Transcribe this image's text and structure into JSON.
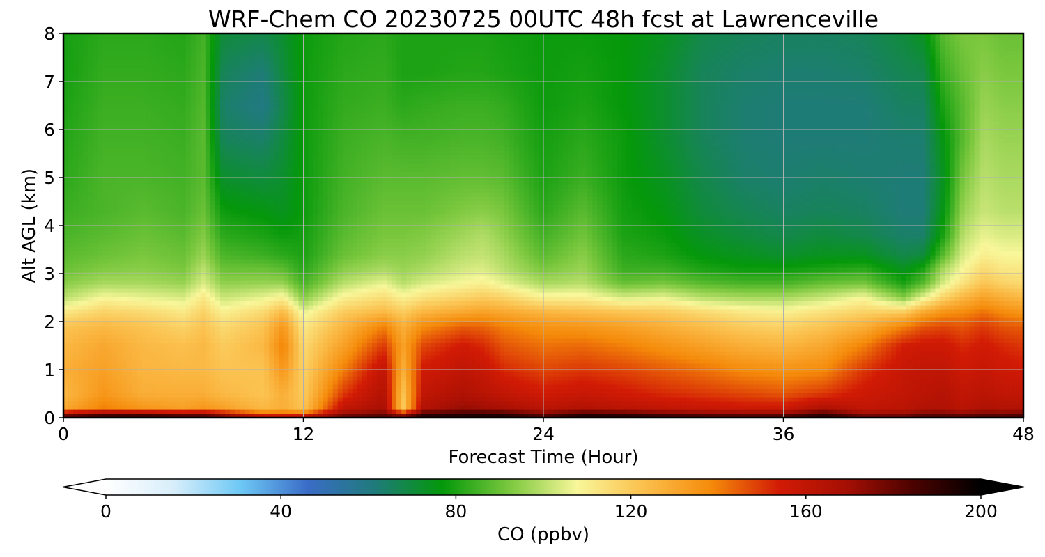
{
  "chart_data": {
    "type": "heatmap",
    "title": "WRF-Chem CO  20230725 00UTC 48h fcst at Lawrenceville",
    "xlabel": "Forecast Time (Hour)",
    "ylabel": "Alt AGL (km)",
    "xlim": [
      0,
      48
    ],
    "ylim": [
      0,
      8
    ],
    "x_ticks": [
      "0",
      "12",
      "24",
      "36",
      "48"
    ],
    "y_ticks": [
      "0",
      "1",
      "2",
      "3",
      "4",
      "5",
      "6",
      "7",
      "8"
    ],
    "grid": true,
    "colorbar": {
      "label": "CO  (ppbv)",
      "range": [
        0,
        200
      ],
      "ticks": [
        "0",
        "40",
        "80",
        "120",
        "160",
        "200"
      ],
      "extend": "both",
      "colors": [
        "#ffffff",
        "#d8eefa",
        "#6ec8f5",
        "#3a6cc7",
        "#1f7b7a",
        "#04980a",
        "#7cc83e",
        "#f8f79a",
        "#fbbf4c",
        "#f58a0a",
        "#d21b05",
        "#a50f04",
        "#4a0200",
        "#000000"
      ]
    },
    "hours": [
      0,
      2,
      4,
      6,
      7,
      8,
      10,
      11,
      12,
      14,
      16,
      17,
      18,
      20,
      21,
      22,
      24,
      26,
      28,
      30,
      32,
      34,
      36,
      38,
      40,
      42,
      43,
      44,
      45,
      46,
      47,
      48
    ],
    "altitudes_km": [
      0,
      0.05,
      0.2,
      0.5,
      1,
      1.5,
      1.9,
      2.2,
      2.5,
      2.8,
      3.1,
      3.4,
      3.8,
      4.3,
      5,
      5.8,
      6.5,
      7.2,
      8
    ],
    "co_ppbv": [
      [
        200,
        175,
        130,
        125,
        128,
        125,
        122,
        112,
        100,
        94,
        90,
        88,
        86,
        84,
        82,
        81,
        80,
        79,
        79
      ],
      [
        200,
        185,
        140,
        135,
        132,
        130,
        125,
        118,
        108,
        98,
        93,
        90,
        88,
        86,
        86,
        85,
        84,
        83,
        82
      ],
      [
        200,
        185,
        135,
        128,
        126,
        125,
        122,
        116,
        106,
        98,
        94,
        92,
        90,
        88,
        86,
        85,
        84,
        83,
        82
      ],
      [
        200,
        180,
        132,
        128,
        125,
        123,
        118,
        112,
        104,
        96,
        92,
        90,
        88,
        86,
        85,
        84,
        83,
        82,
        81
      ],
      [
        200,
        180,
        135,
        128,
        125,
        125,
        122,
        118,
        112,
        104,
        100,
        96,
        93,
        90,
        88,
        88,
        87,
        86,
        85
      ],
      [
        200,
        170,
        132,
        125,
        122,
        120,
        116,
        110,
        102,
        95,
        90,
        86,
        82,
        78,
        72,
        66,
        64,
        66,
        70
      ],
      [
        200,
        150,
        125,
        122,
        122,
        125,
        122,
        116,
        106,
        96,
        90,
        84,
        80,
        76,
        70,
        64,
        60,
        62,
        68
      ],
      [
        200,
        150,
        128,
        128,
        135,
        140,
        135,
        125,
        110,
        96,
        88,
        82,
        78,
        74,
        72,
        70,
        68,
        70,
        72
      ],
      [
        200,
        150,
        122,
        120,
        118,
        116,
        112,
        106,
        94,
        86,
        82,
        80,
        79,
        78,
        78,
        78,
        78,
        78,
        78
      ],
      [
        200,
        175,
        160,
        150,
        140,
        132,
        126,
        120,
        110,
        100,
        94,
        90,
        88,
        86,
        85,
        84,
        83,
        82,
        81
      ],
      [
        200,
        180,
        168,
        165,
        160,
        150,
        140,
        125,
        115,
        106,
        98,
        94,
        92,
        90,
        88,
        86,
        84,
        83,
        82
      ],
      [
        200,
        170,
        120,
        122,
        128,
        132,
        128,
        120,
        110,
        100,
        96,
        94,
        92,
        90,
        88,
        85,
        82,
        80,
        80
      ],
      [
        200,
        190,
        165,
        160,
        155,
        148,
        138,
        126,
        114,
        104,
        98,
        95,
        93,
        90,
        88,
        85,
        83,
        80,
        80
      ],
      [
        200,
        192,
        172,
        166,
        160,
        155,
        145,
        130,
        118,
        108,
        103,
        100,
        97,
        93,
        89,
        86,
        84,
        81,
        80
      ],
      [
        200,
        193,
        170,
        163,
        158,
        152,
        144,
        132,
        120,
        110,
        104,
        101,
        99,
        94,
        89,
        86,
        84,
        81,
        80
      ],
      [
        200,
        192,
        168,
        160,
        152,
        146,
        140,
        130,
        118,
        106,
        100,
        98,
        95,
        92,
        88,
        85,
        83,
        80,
        79
      ],
      [
        200,
        180,
        162,
        155,
        148,
        142,
        136,
        126,
        110,
        98,
        92,
        88,
        85,
        82,
        80,
        79,
        78,
        78,
        78
      ],
      [
        200,
        192,
        165,
        158,
        150,
        143,
        135,
        124,
        110,
        100,
        96,
        94,
        91,
        88,
        84,
        82,
        80,
        79,
        78
      ],
      [
        200,
        190,
        162,
        155,
        148,
        140,
        132,
        122,
        104,
        90,
        84,
        82,
        80,
        79,
        78,
        78,
        77,
        77,
        77
      ],
      [
        200,
        185,
        160,
        152,
        145,
        136,
        128,
        120,
        106,
        92,
        84,
        80,
        78,
        76,
        74,
        72,
        72,
        72,
        74
      ],
      [
        200,
        182,
        158,
        150,
        142,
        132,
        124,
        116,
        100,
        88,
        80,
        76,
        73,
        70,
        68,
        66,
        66,
        66,
        68
      ],
      [
        200,
        180,
        156,
        148,
        138,
        128,
        120,
        112,
        98,
        86,
        78,
        74,
        70,
        67,
        64,
        63,
        63,
        64,
        66
      ],
      [
        200,
        180,
        156,
        146,
        136,
        126,
        118,
        110,
        98,
        86,
        78,
        72,
        68,
        65,
        63,
        62,
        62,
        63,
        65
      ],
      [
        200,
        190,
        166,
        150,
        138,
        130,
        122,
        114,
        102,
        90,
        80,
        74,
        70,
        66,
        64,
        62,
        62,
        63,
        65
      ],
      [
        200,
        175,
        160,
        156,
        150,
        140,
        128,
        118,
        108,
        92,
        82,
        74,
        68,
        65,
        63,
        62,
        62,
        64,
        66
      ],
      [
        200,
        175,
        162,
        160,
        158,
        154,
        140,
        120,
        94,
        80,
        74,
        68,
        64,
        62,
        62,
        63,
        65,
        67,
        70
      ],
      [
        200,
        180,
        165,
        162,
        160,
        156,
        146,
        130,
        106,
        88,
        80,
        70,
        64,
        62,
        62,
        63,
        65,
        68,
        74
      ],
      [
        200,
        180,
        166,
        164,
        160,
        156,
        148,
        136,
        118,
        104,
        98,
        88,
        80,
        76,
        74,
        76,
        80,
        84,
        88
      ],
      [
        200,
        178,
        162,
        160,
        156,
        152,
        146,
        138,
        126,
        114,
        108,
        104,
        100,
        96,
        92,
        88,
        88,
        90,
        92
      ],
      [
        200,
        180,
        166,
        162,
        158,
        155,
        150,
        142,
        132,
        122,
        116,
        110,
        106,
        102,
        100,
        98,
        96,
        94,
        92
      ],
      [
        200,
        180,
        165,
        160,
        156,
        152,
        146,
        138,
        128,
        118,
        112,
        108,
        104,
        100,
        98,
        96,
        94,
        92,
        90
      ],
      [
        200,
        182,
        165,
        160,
        155,
        150,
        145,
        135,
        125,
        116,
        112,
        108,
        104,
        100,
        98,
        96,
        94,
        92,
        90
      ]
    ]
  }
}
